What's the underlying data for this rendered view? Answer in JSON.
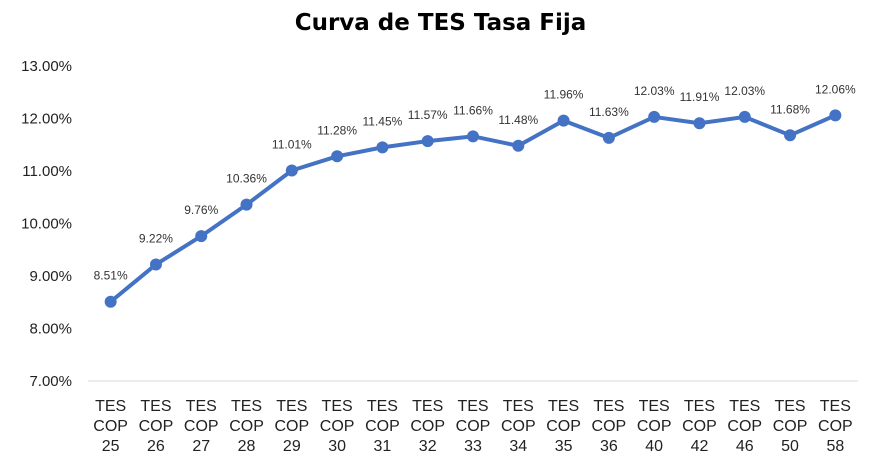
{
  "chart_data": {
    "type": "line",
    "title": "Curva de TES Tasa Fija",
    "xlabel": "",
    "ylabel": "",
    "ylim": [
      0.07,
      0.13
    ],
    "yticks": [
      "13.00%",
      "12.00%",
      "11.00%",
      "10.00%",
      "9.00%",
      "8.00%",
      "7.00%"
    ],
    "ytick_values": [
      0.13,
      0.12,
      0.11,
      0.1,
      0.09,
      0.08,
      0.07
    ],
    "grid": false,
    "legend": "none",
    "line_color": "#4472C4",
    "categories": [
      "TES COP 25",
      "TES COP 26",
      "TES COP 27",
      "TES COP 28",
      "TES COP 29",
      "TES COP 30",
      "TES COP 31",
      "TES COP 32",
      "TES COP 33",
      "TES COP 34",
      "TES COP 35",
      "TES COP 36",
      "TES COP 40",
      "TES COP 42",
      "TES COP 46",
      "TES COP 50",
      "TES COP 58"
    ],
    "category_lines": [
      [
        "TES",
        "COP",
        "25"
      ],
      [
        "TES",
        "COP",
        "26"
      ],
      [
        "TES",
        "COP",
        "27"
      ],
      [
        "TES",
        "COP",
        "28"
      ],
      [
        "TES",
        "COP",
        "29"
      ],
      [
        "TES",
        "COP",
        "30"
      ],
      [
        "TES",
        "COP",
        "31"
      ],
      [
        "TES",
        "COP",
        "32"
      ],
      [
        "TES",
        "COP",
        "33"
      ],
      [
        "TES",
        "COP",
        "34"
      ],
      [
        "TES",
        "COP",
        "35"
      ],
      [
        "TES",
        "COP",
        "36"
      ],
      [
        "TES",
        "COP",
        "40"
      ],
      [
        "TES",
        "COP",
        "42"
      ],
      [
        "TES",
        "COP",
        "46"
      ],
      [
        "TES",
        "COP",
        "50"
      ],
      [
        "TES",
        "COP",
        "58"
      ]
    ],
    "series": [
      {
        "values": [
          0.0851,
          0.0922,
          0.0976,
          0.1036,
          0.1101,
          0.1128,
          0.1145,
          0.1157,
          0.1166,
          0.1148,
          0.1196,
          0.1163,
          0.1203,
          0.1191,
          0.1203,
          0.1168,
          0.1206
        ],
        "labels": [
          "8.51%",
          "9.22%",
          "9.76%",
          "10.36%",
          "11.01%",
          "11.28%",
          "11.45%",
          "11.57%",
          "11.66%",
          "11.48%",
          "11.96%",
          "11.63%",
          "12.03%",
          "11.91%",
          "12.03%",
          "11.68%",
          "12.06%"
        ]
      }
    ]
  }
}
